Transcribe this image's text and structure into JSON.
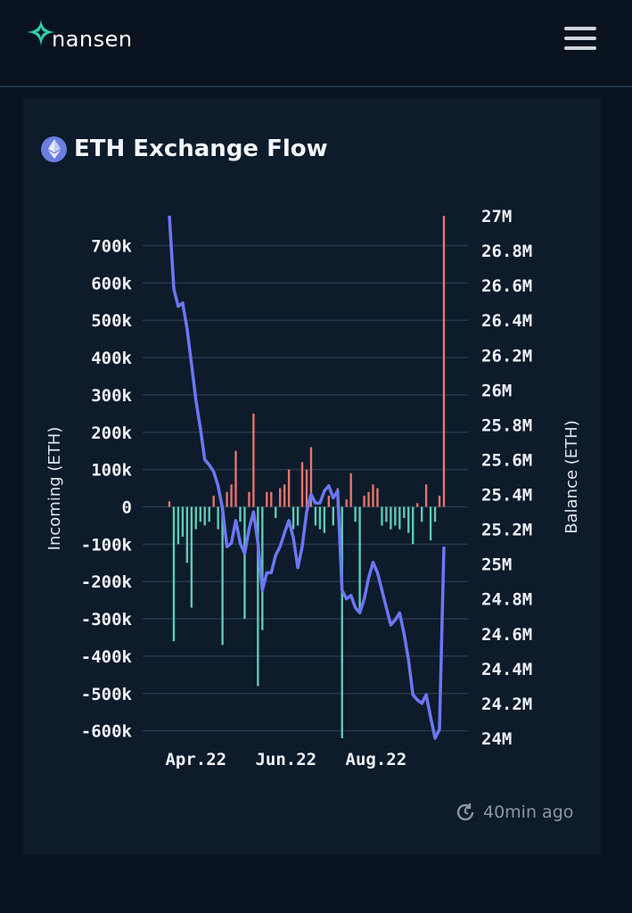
{
  "header": {
    "logo_text": "nansen",
    "menu_icon": "hamburger-icon"
  },
  "card": {
    "title": "ETH Exchange Flow",
    "title_icon": "ethereum-icon",
    "updated": "40min ago",
    "updated_icon": "refresh-clock-icon"
  },
  "colors": {
    "inflow": "#e4746c",
    "outflow": "#5fc9b3",
    "balance": "#6b77f2",
    "accent": "#2fd3ad"
  },
  "chart_data": {
    "type": "bar+line",
    "title": "",
    "ylabel_left": "Incoming (ETH)",
    "ylabel_right": "Balance (ETH)",
    "ylim_left": [
      -620000,
      780000
    ],
    "ylim_right": [
      24000000,
      27000000
    ],
    "left_ticks": [
      {
        "v": 700000,
        "label": "700k"
      },
      {
        "v": 600000,
        "label": "600k"
      },
      {
        "v": 500000,
        "label": "500k"
      },
      {
        "v": 400000,
        "label": "400k"
      },
      {
        "v": 300000,
        "label": "300k"
      },
      {
        "v": 200000,
        "label": "200k"
      },
      {
        "v": 100000,
        "label": "100k"
      },
      {
        "v": 0,
        "label": "0"
      },
      {
        "v": -100000,
        "label": "-100k"
      },
      {
        "v": -200000,
        "label": "-200k"
      },
      {
        "v": -300000,
        "label": "-300k"
      },
      {
        "v": -400000,
        "label": "-400k"
      },
      {
        "v": -500000,
        "label": "-500k"
      },
      {
        "v": -600000,
        "label": "-600k"
      }
    ],
    "right_ticks": [
      {
        "v": 27000000,
        "label": "27M"
      },
      {
        "v": 26800000,
        "label": "26.8M"
      },
      {
        "v": 26600000,
        "label": "26.6M"
      },
      {
        "v": 26400000,
        "label": "26.4M"
      },
      {
        "v": 26200000,
        "label": "26.2M"
      },
      {
        "v": 26000000,
        "label": "26M"
      },
      {
        "v": 25800000,
        "label": "25.8M"
      },
      {
        "v": 25600000,
        "label": "25.6M"
      },
      {
        "v": 25400000,
        "label": "25.4M"
      },
      {
        "v": 25200000,
        "label": "25.2M"
      },
      {
        "v": 25000000,
        "label": "25M"
      },
      {
        "v": 24800000,
        "label": "24.8M"
      },
      {
        "v": 24600000,
        "label": "24.6M"
      },
      {
        "v": 24400000,
        "label": "24.4M"
      },
      {
        "v": 24200000,
        "label": "24.2M"
      },
      {
        "v": 24000000,
        "label": "24M"
      }
    ],
    "x_ticks": [
      {
        "date": "2022-04-01",
        "label": "Apr.22"
      },
      {
        "date": "2022-06-01",
        "label": "Jun.22"
      },
      {
        "date": "2022-08-01",
        "label": "Aug.22"
      }
    ],
    "grid": true,
    "legend": "none",
    "dates": [
      "2022-03-14",
      "2022-03-17",
      "2022-03-20",
      "2022-03-23",
      "2022-03-26",
      "2022-03-29",
      "2022-04-01",
      "2022-04-04",
      "2022-04-07",
      "2022-04-10",
      "2022-04-13",
      "2022-04-16",
      "2022-04-19",
      "2022-04-22",
      "2022-04-25",
      "2022-04-28",
      "2022-05-01",
      "2022-05-04",
      "2022-05-07",
      "2022-05-10",
      "2022-05-13",
      "2022-05-16",
      "2022-05-19",
      "2022-05-22",
      "2022-05-25",
      "2022-05-28",
      "2022-05-31",
      "2022-06-03",
      "2022-06-06",
      "2022-06-09",
      "2022-06-12",
      "2022-06-15",
      "2022-06-18",
      "2022-06-21",
      "2022-06-24",
      "2022-06-27",
      "2022-06-30",
      "2022-07-03",
      "2022-07-06",
      "2022-07-09",
      "2022-07-12",
      "2022-07-15",
      "2022-07-18",
      "2022-07-21",
      "2022-07-24",
      "2022-07-27",
      "2022-07-30",
      "2022-08-02",
      "2022-08-05",
      "2022-08-08",
      "2022-08-11",
      "2022-08-14",
      "2022-08-17",
      "2022-08-20",
      "2022-08-23",
      "2022-08-26",
      "2022-08-29",
      "2022-09-01",
      "2022-09-04",
      "2022-09-07",
      "2022-09-10",
      "2022-09-13",
      "2022-09-16"
    ],
    "series": [
      {
        "kind": "bar",
        "axis": "left",
        "values": [
          15000,
          -360000,
          -100000,
          -80000,
          -150000,
          -270000,
          -60000,
          -40000,
          -50000,
          -40000,
          30000,
          -60000,
          -370000,
          40000,
          60000,
          150000,
          -40000,
          -300000,
          40000,
          250000,
          -480000,
          -330000,
          40000,
          40000,
          -30000,
          50000,
          60000,
          100000,
          -60000,
          -50000,
          120000,
          100000,
          160000,
          -50000,
          -60000,
          -70000,
          30000,
          -50000,
          50000,
          -620000,
          20000,
          90000,
          -40000,
          -280000,
          30000,
          40000,
          60000,
          50000,
          -50000,
          -40000,
          -60000,
          -50000,
          -60000,
          -30000,
          -70000,
          -100000,
          10000,
          -40000,
          60000,
          -90000,
          -40000,
          30000,
          780000
        ]
      },
      {
        "kind": "line",
        "axis": "right",
        "values": [
          27000000,
          26580000,
          26480000,
          26500000,
          26350000,
          26150000,
          25940000,
          25780000,
          25600000,
          25570000,
          25530000,
          25450000,
          25320000,
          25100000,
          25120000,
          25250000,
          25120000,
          25060000,
          25200000,
          25300000,
          25120000,
          24850000,
          24950000,
          24950000,
          25050000,
          25100000,
          25180000,
          25250000,
          25150000,
          24980000,
          25100000,
          25300000,
          25400000,
          25350000,
          25350000,
          25420000,
          25450000,
          25380000,
          25420000,
          24850000,
          24800000,
          24820000,
          24750000,
          24720000,
          24800000,
          24920000,
          25010000,
          24950000,
          24850000,
          24750000,
          24650000,
          24680000,
          24720000,
          24600000,
          24450000,
          24250000,
          24220000,
          24200000,
          24250000,
          24120000,
          24000000,
          24050000,
          25100000
        ]
      }
    ]
  }
}
